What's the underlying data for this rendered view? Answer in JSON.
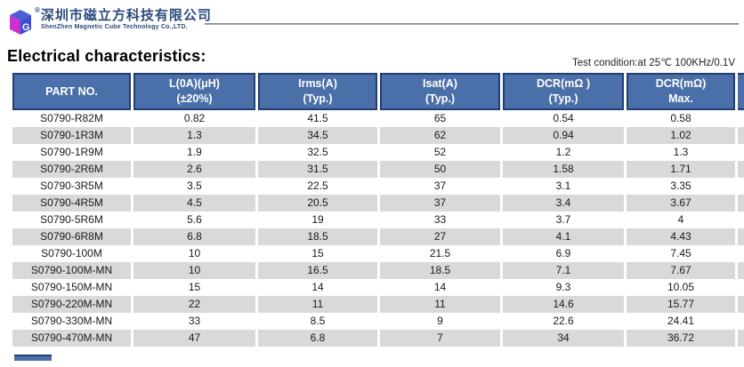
{
  "header": {
    "registered_mark": "®",
    "company_name_cn": "深圳市磁立方科技有限公司",
    "company_name_en": "ShenZhen Magnetic Cube Technology Co.,LTD."
  },
  "section": {
    "title": "Electrical characteristics:",
    "test_condition": "Test condition:at 25℃ 100KHz/0.1V"
  },
  "table": {
    "columns": [
      {
        "line1": "PART NO.",
        "line2": ""
      },
      {
        "line1": "L(0A)(μH)",
        "line2": "(±20%)"
      },
      {
        "line1": "Irms(A)",
        "line2": "(Typ.)"
      },
      {
        "line1": "Isat(A)",
        "line2": "(Typ.)"
      },
      {
        "line1": "DCR(mΩ )",
        "line2": "(Typ.)"
      },
      {
        "line1": "DCR(mΩ)",
        "line2": "Max."
      }
    ],
    "rows": [
      [
        "S0790-R82M",
        "0.82",
        "41.5",
        "65",
        "0.54",
        "0.58"
      ],
      [
        "S0790-1R3M",
        "1.3",
        "34.5",
        "62",
        "0.94",
        "1.02"
      ],
      [
        "S0790-1R9M",
        "1.9",
        "32.5",
        "52",
        "1.2",
        "1.3"
      ],
      [
        "S0790-2R6M",
        "2.6",
        "31.5",
        "50",
        "1.58",
        "1.71"
      ],
      [
        "S0790-3R5M",
        "3.5",
        "22.5",
        "37",
        "3.1",
        "3.35"
      ],
      [
        "S0790-4R5M",
        "4.5",
        "20.5",
        "37",
        "3.4",
        "3.67"
      ],
      [
        "S0790-5R6M",
        "5.6",
        "19",
        "33",
        "3.7",
        "4"
      ],
      [
        "S0790-6R8M",
        "6.8",
        "18.5",
        "27",
        "4.1",
        "4.43"
      ],
      [
        "S0790-100M",
        "10",
        "15",
        "21.5",
        "6.9",
        "7.45"
      ],
      [
        "S0790-100M-MN",
        "10",
        "16.5",
        "18.5",
        "7.1",
        "7.67"
      ],
      [
        "S0790-150M-MN",
        "15",
        "14",
        "14",
        "9.3",
        "10.05"
      ],
      [
        "S0790-220M-MN",
        "22",
        "11",
        "11",
        "14.6",
        "15.77"
      ],
      [
        "S0790-330M-MN",
        "33",
        "8.5",
        "9",
        "22.6",
        "24.41"
      ],
      [
        "S0790-470M-MN",
        "47",
        "6.8",
        "7",
        "34",
        "36.72"
      ]
    ]
  },
  "colors": {
    "header_bg": "#4b70a9",
    "header_border": "#1f3e73",
    "row_alt_bg": "#d9d9d9",
    "brand_navy": "#2c4a7c",
    "logo_magenta": "#cb2fd0",
    "logo_blue": "#3a4fd0"
  }
}
